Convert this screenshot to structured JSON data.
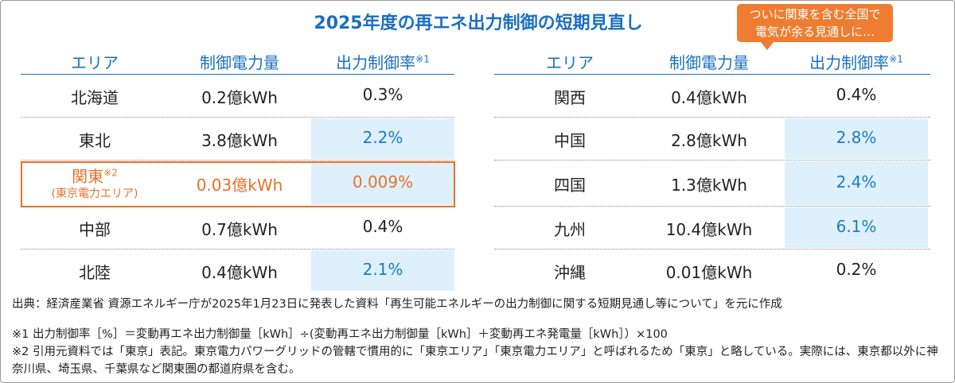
{
  "title": "2025年度の再エネ出力制御の短期見直し",
  "callout": [
    "ついに関東を含む全国で",
    "電気が余る見通しに…"
  ],
  "tables": [
    {
      "headers": [
        {
          "text": "エリア"
        },
        {
          "text": "制御電力量"
        },
        {
          "text": "出力制御率",
          "note": "※1"
        }
      ],
      "rows": [
        {
          "area": "北海道",
          "amount": "0.2億kWh",
          "rate": "0.3%",
          "highlight": false
        },
        {
          "area": "東北",
          "amount": "3.8億kWh",
          "rate": "2.2%",
          "highlight": true
        },
        {
          "area": "関東",
          "area_note": "※2",
          "area_sub": "(東京電力エリア)",
          "amount": "0.03億kWh",
          "rate": "0.009%",
          "highlight": true,
          "emphasis": true
        },
        {
          "area": "中部",
          "amount": "0.7億kWh",
          "rate": "0.4%",
          "highlight": false
        },
        {
          "area": "北陸",
          "amount": "0.4億kWh",
          "rate": "2.1%",
          "highlight": true
        }
      ]
    },
    {
      "headers": [
        {
          "text": "エリア"
        },
        {
          "text": "制御電力量"
        },
        {
          "text": "出力制御率",
          "note": "※1"
        }
      ],
      "rows": [
        {
          "area": "関西",
          "amount": "0.4億kWh",
          "rate": "0.4%",
          "highlight": false
        },
        {
          "area": "中国",
          "amount": "2.8億kWh",
          "rate": "2.8%",
          "highlight": true
        },
        {
          "area": "四国",
          "amount": "1.3億kWh",
          "rate": "2.4%",
          "highlight": true
        },
        {
          "area": "九州",
          "amount": "10.4億kWh",
          "rate": "6.1%",
          "highlight": true
        },
        {
          "area": "沖縄",
          "amount": "0.01億kWh",
          "rate": "0.2%",
          "highlight": false
        }
      ]
    }
  ],
  "source": "出典：経済産業省 資源エネルギー庁が2025年1月23日に発表した資料「再生可能エネルギーの出力制御に関する短期見通し等について」を元に作成",
  "notes": [
    "※1 出力制御率［%］＝変動再エネ出力制御量［kWh］÷(変動再エネ出力制御量［kWh］＋変動再エネ発電量［kWh］）×100",
    "※2 引用元資料では「東京」表記。東京電力パワーグリッドの管轄で慣用的に「東京エリア」「東京電力エリア」と呼ばれるため「東京」と略している。実際には、東京都以外に神奈川県、埼玉県、千葉県など関東圏の都道府県を含む。"
  ]
}
